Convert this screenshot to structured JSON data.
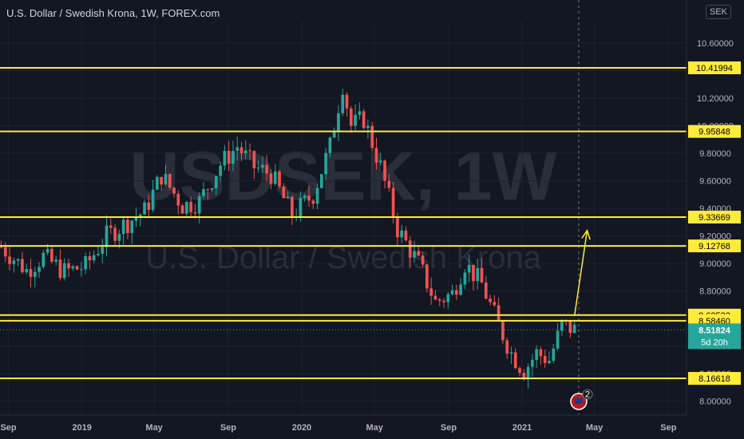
{
  "header": {
    "title": "U.S. Dollar / Swedish Krona, 1W, FOREX.com",
    "currency": "SEK"
  },
  "watermark": {
    "symbol": "USDSEK, 1W",
    "name": "U.S. Dollar / Swedish Krona"
  },
  "colors": {
    "up": "#26a69a",
    "down": "#ef5350",
    "level": "#ffeb3b",
    "background": "#131722"
  },
  "chart_data": {
    "type": "candlestick",
    "title": "U.S. Dollar / Swedish Krona, 1W, FOREX.com",
    "ylim": [
      7.9,
      10.75
    ],
    "y_ticks": [
      8.0,
      8.2,
      8.4,
      8.6,
      8.8,
      9.0,
      9.2,
      9.4,
      9.6,
      9.8,
      10.0,
      10.2,
      10.4,
      10.6
    ],
    "x_ticks": [
      {
        "label": "Sep",
        "date": "2018-09-01"
      },
      {
        "label": "2019",
        "date": "2019-01-01"
      },
      {
        "label": "May",
        "date": "2019-05-01"
      },
      {
        "label": "Sep",
        "date": "2019-09-01"
      },
      {
        "label": "2020",
        "date": "2020-01-01"
      },
      {
        "label": "May",
        "date": "2020-05-01"
      },
      {
        "label": "Sep",
        "date": "2020-09-01"
      },
      {
        "label": "2021",
        "date": "2021-01-01"
      },
      {
        "label": "May",
        "date": "2021-05-01"
      },
      {
        "label": "Sep",
        "date": "2021-09-01"
      }
    ],
    "price_path": [
      [
        "2018-08-20",
        9.12
      ],
      [
        "2018-10-01",
        8.95
      ],
      [
        "2018-10-29",
        9.05
      ],
      [
        "2018-12-03",
        8.94
      ],
      [
        "2019-01-07",
        8.98
      ],
      [
        "2019-02-11",
        9.2
      ],
      [
        "2019-03-18",
        9.3
      ],
      [
        "2019-04-15",
        9.38
      ],
      [
        "2019-05-13",
        9.64
      ],
      [
        "2019-06-17",
        9.42
      ],
      [
        "2019-07-15",
        9.45
      ],
      [
        "2019-08-19",
        9.72
      ],
      [
        "2019-09-16",
        9.85
      ],
      [
        "2019-10-14",
        9.7
      ],
      [
        "2019-11-11",
        9.65
      ],
      [
        "2019-12-16",
        9.35
      ],
      [
        "2020-01-20",
        9.5
      ],
      [
        "2020-02-17",
        9.85
      ],
      [
        "2020-03-09",
        10.3
      ],
      [
        "2020-03-23",
        10.0
      ],
      [
        "2020-04-13",
        10.05
      ],
      [
        "2020-05-11",
        9.7
      ],
      [
        "2020-06-08",
        9.25
      ],
      [
        "2020-07-13",
        9.0
      ],
      [
        "2020-08-10",
        8.72
      ],
      [
        "2020-09-07",
        8.78
      ],
      [
        "2020-09-28",
        9.0
      ],
      [
        "2020-10-26",
        8.85
      ],
      [
        "2020-11-23",
        8.55
      ],
      [
        "2020-12-14",
        8.35
      ],
      [
        "2021-01-04",
        8.22
      ],
      [
        "2021-01-25",
        8.35
      ],
      [
        "2021-02-15",
        8.3
      ],
      [
        "2021-03-08",
        8.55
      ],
      [
        "2021-03-29",
        8.52
      ]
    ],
    "levels": [
      {
        "value": 10.41994,
        "label": "10.41994"
      },
      {
        "value": 9.95848,
        "label": "9.95848"
      },
      {
        "value": 9.33669,
        "label": "9.33669"
      },
      {
        "value": 9.12768,
        "label": "9.12768"
      },
      {
        "value": 8.62523,
        "label": "8.62523"
      },
      {
        "value": 8.5846,
        "label": "8.58460"
      },
      {
        "value": 8.16618,
        "label": "8.16618"
      }
    ],
    "last_price": {
      "value": 8.51824,
      "label": "8.51824",
      "countdown": "5d 20h"
    },
    "projection": {
      "from": [
        "2021-03-29",
        8.62
      ],
      "to": [
        "2021-04-19",
        9.24
      ]
    },
    "event_marker": {
      "date": "2021-04-05",
      "count": "2"
    }
  }
}
